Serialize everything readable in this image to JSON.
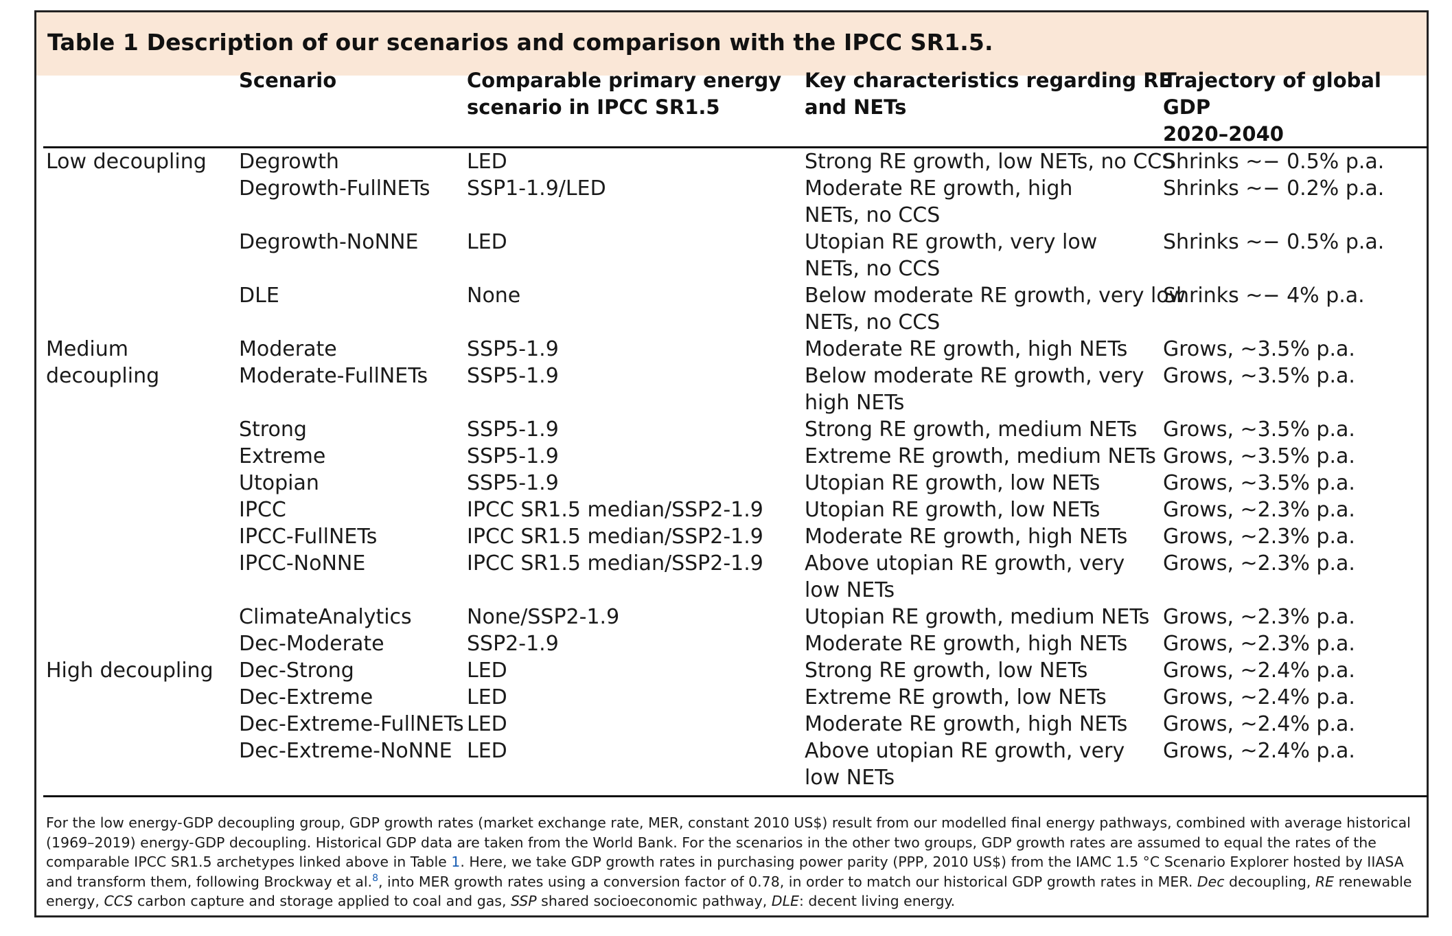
{
  "title": "Table 1 Description of our scenarios and comparison with the IPCC SR1.5.",
  "headers": {
    "scenario": [
      "Scenario"
    ],
    "comparable": [
      "Comparable primary energy",
      "scenario in IPCC SR1.5"
    ],
    "key": [
      "Key characteristics regarding RE",
      "and NETs"
    ],
    "trajectory": [
      "Trajectory of global GDP",
      "2020–2040"
    ]
  },
  "group_labels": [
    {
      "lines": [
        "Low decoupling"
      ]
    },
    {
      "lines": [
        "Medium",
        "decoupling"
      ]
    },
    {
      "lines": [
        "High decoupling"
      ]
    }
  ],
  "rows": [
    {
      "scenario": "Degrowth",
      "comparable": "LED",
      "key": [
        "Strong RE growth, low NETs, no CCS"
      ],
      "trajectory": "Shrinks ~− 0.5% p.a."
    },
    {
      "scenario": "Degrowth-FullNETs",
      "comparable": "SSP1-1.9/LED",
      "key": [
        "Moderate RE growth, high",
        "NETs, no CCS"
      ],
      "trajectory": "Shrinks ~− 0.2% p.a."
    },
    {
      "scenario": "Degrowth-NoNNE",
      "comparable": "LED",
      "key": [
        "Utopian RE growth, very low",
        "NETs, no CCS"
      ],
      "trajectory": "Shrinks ~− 0.5% p.a."
    },
    {
      "scenario": "DLE",
      "comparable": "None",
      "key": [
        "Below moderate RE growth, very low",
        "NETs, no CCS"
      ],
      "trajectory": "Shrinks ~− 4% p.a."
    },
    {
      "scenario": "Moderate",
      "comparable": "SSP5-1.9",
      "key": [
        "Moderate RE growth, high NETs"
      ],
      "trajectory": "Grows, ~3.5% p.a."
    },
    {
      "scenario": "Moderate-FullNETs",
      "comparable": "SSP5-1.9",
      "key": [
        "Below moderate RE growth, very",
        "high NETs"
      ],
      "trajectory": "Grows, ~3.5% p.a."
    },
    {
      "scenario": "Strong",
      "comparable": "SSP5-1.9",
      "key": [
        "Strong RE growth, medium NETs"
      ],
      "trajectory": "Grows, ~3.5% p.a."
    },
    {
      "scenario": "Extreme",
      "comparable": "SSP5-1.9",
      "key": [
        "Extreme RE growth, medium NETs"
      ],
      "trajectory": "Grows, ~3.5% p.a."
    },
    {
      "scenario": "Utopian",
      "comparable": "SSP5-1.9",
      "key": [
        "Utopian RE growth, low NETs"
      ],
      "trajectory": "Grows, ~3.5% p.a."
    },
    {
      "scenario": "IPCC",
      "comparable": "IPCC SR1.5 median/SSP2-1.9",
      "key": [
        "Utopian RE growth, low NETs"
      ],
      "trajectory": "Grows, ~2.3% p.a."
    },
    {
      "scenario": "IPCC-FullNETs",
      "comparable": "IPCC SR1.5 median/SSP2-1.9",
      "key": [
        "Moderate RE growth, high NETs"
      ],
      "trajectory": "Grows, ~2.3% p.a."
    },
    {
      "scenario": "IPCC-NoNNE",
      "comparable": "IPCC SR1.5 median/SSP2-1.9",
      "key": [
        "Above utopian RE growth, very",
        "low NETs"
      ],
      "trajectory": "Grows, ~2.3% p.a."
    },
    {
      "scenario": "ClimateAnalytics",
      "comparable": "None/SSP2-1.9",
      "key": [
        "Utopian RE growth, medium NETs"
      ],
      "trajectory": "Grows, ~2.3% p.a."
    },
    {
      "scenario": "Dec-Moderate",
      "comparable": "SSP2-1.9",
      "key": [
        "Moderate RE growth, high NETs"
      ],
      "trajectory": "Grows, ~2.3% p.a."
    },
    {
      "scenario": "Dec-Strong",
      "comparable": "LED",
      "key": [
        "Strong RE growth, low NETs"
      ],
      "trajectory": "Grows, ~2.4% p.a."
    },
    {
      "scenario": "Dec-Extreme",
      "comparable": "LED",
      "key": [
        "Extreme RE growth, low NETs"
      ],
      "trajectory": "Grows, ~2.4% p.a."
    },
    {
      "scenario": "Dec-Extreme-FullNETs",
      "comparable": "LED",
      "key": [
        "Moderate RE growth, high NETs"
      ],
      "trajectory": "Grows, ~2.4% p.a."
    },
    {
      "scenario": "Dec-Extreme-NoNNE",
      "comparable": "LED",
      "key": [
        "Above utopian RE growth, very",
        "low NETs"
      ],
      "trajectory": "Grows, ~2.4% p.a."
    }
  ],
  "footnote": {
    "p1": "For the low energy-GDP decoupling group, GDP growth rates (market exchange rate, MER, constant 2010 US$) result from our modelled final energy pathways, combined with average historical (1969–2019) energy-GDP decoupling. Historical GDP data are taken from the World Bank. For the scenarios in the other two groups, GDP growth rates are assumed to equal the rates of the comparable IPCC SR1.5 archetypes linked above in Table ",
    "table_ref": "1",
    "p2": ". Here, we take GDP growth rates in purchasing power parity (PPP, 2010 US$) from the IAMC 1.5 °C Scenario Explorer hosted by IIASA and transform them, following Brockway et al.",
    "ref": "8",
    "p3": ", into MER growth rates using a conversion factor of 0.78, in order to match our historical GDP growth rates in MER. ",
    "abbr": [
      {
        "term": "Dec",
        "def": " decoupling, "
      },
      {
        "term": "RE",
        "def": " renewable energy, "
      },
      {
        "term": "CCS",
        "def": " carbon capture and storage applied to coal and gas, "
      },
      {
        "term": "SSP",
        "def": " shared socioeconomic pathway, "
      },
      {
        "term": "DLE",
        "def": ": decent living energy."
      }
    ]
  }
}
